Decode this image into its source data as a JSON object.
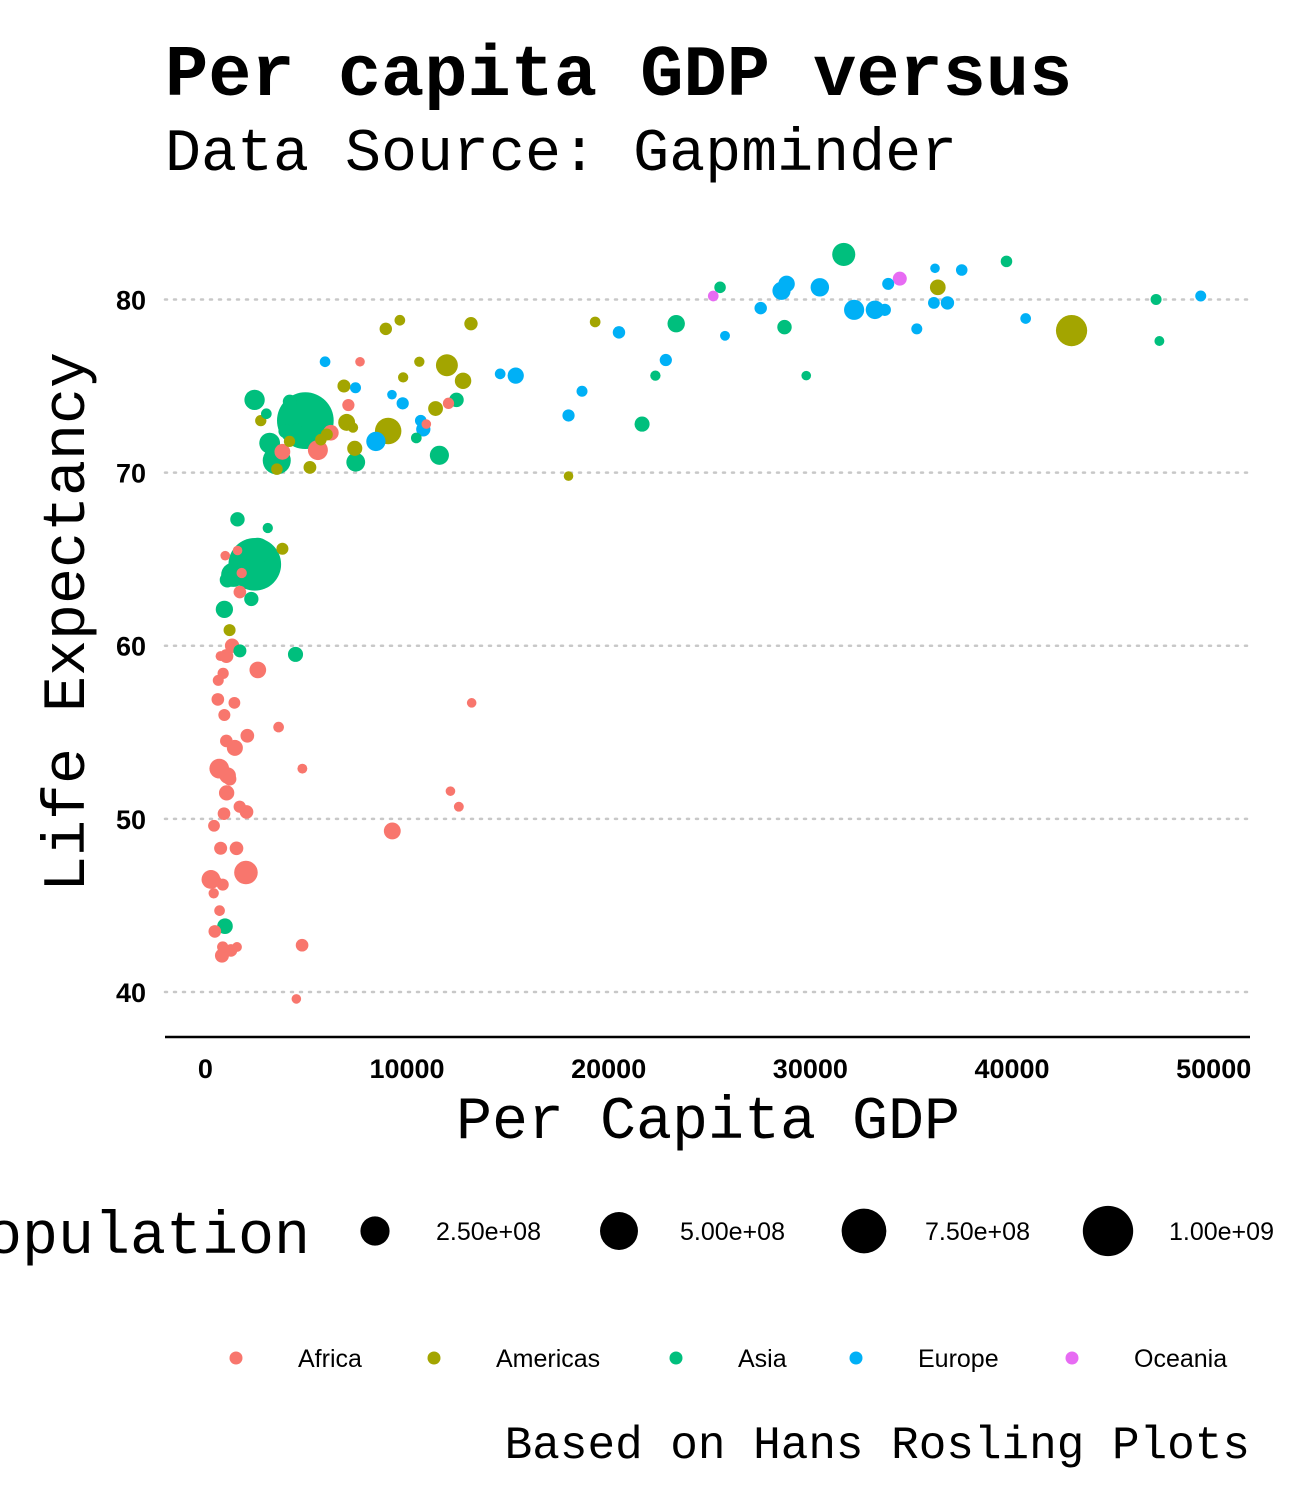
{
  "chart_data": {
    "type": "scatter",
    "title": "Per capita GDP versus",
    "subtitle": "Data Source: Gapminder",
    "xlabel": "Per Capita GDP",
    "ylabel": "Life Expectancy",
    "caption": "Based on Hans Rosling Plots",
    "xlim": [
      -2000,
      51800
    ],
    "ylim": [
      37.4,
      84.3
    ],
    "x_ticks": [
      0,
      10000,
      20000,
      30000,
      40000,
      50000
    ],
    "y_ticks": [
      40,
      50,
      60,
      70,
      80
    ],
    "grid": "horizontal-dotted",
    "size_legend": {
      "title": "Population",
      "entries": [
        {
          "label": "2.50e+08",
          "value": 250000000
        },
        {
          "label": "5.00e+08",
          "value": 500000000
        },
        {
          "label": "7.50e+08",
          "value": 750000000
        },
        {
          "label": "1.00e+09",
          "value": 1000000000
        }
      ]
    },
    "color_legend": [
      {
        "name": "Africa",
        "color": "#F8766D"
      },
      {
        "name": "Americas",
        "color": "#A3A500"
      },
      {
        "name": "Asia",
        "color": "#00BF7D"
      },
      {
        "name": "Europe",
        "color": "#00B0F6"
      },
      {
        "name": "Oceania",
        "color": "#E76BF3"
      }
    ],
    "series": [
      {
        "name": "Africa",
        "color": "#F8766D",
        "points": [
          [
            6223,
            72.3,
            33
          ],
          [
            4797,
            42.7,
            12
          ],
          [
            1441,
            56.7,
            8
          ],
          [
            12570,
            50.7,
            2
          ],
          [
            1217,
            52.3,
            14
          ],
          [
            430,
            49.6,
            8
          ],
          [
            2042,
            50.4,
            18
          ],
          [
            706,
            44.7,
            4
          ],
          [
            1704,
            50.7,
            10
          ],
          [
            986,
            65.2,
            1
          ],
          [
            278,
            46.5,
            65
          ],
          [
            3633,
            55.3,
            4
          ],
          [
            1545,
            48.3,
            18
          ],
          [
            2082,
            54.8,
            18
          ],
          [
            5581,
            71.3,
            80
          ],
          [
            12154,
            51.6,
            1
          ],
          [
            641,
            58,
            5
          ],
          [
            690,
            52.9,
            76
          ],
          [
            13206,
            56.7,
            1
          ],
          [
            753,
            59.4,
            2
          ],
          [
            1327,
            60,
            23
          ],
          [
            943,
            56,
            9
          ],
          [
            580,
            46.4,
            1
          ],
          [
            1464,
            54.1,
            36
          ],
          [
            1569,
            42.6,
            2
          ],
          [
            415,
            45.7,
            3
          ],
          [
            12057,
            74,
            6
          ],
          [
            1045,
            59.4,
            19
          ],
          [
            759,
            48.3,
            14
          ],
          [
            1042,
            54.5,
            12
          ],
          [
            1803,
            64.2,
            3
          ],
          [
            10957,
            72.8,
            1
          ],
          [
            3820,
            71.2,
            34
          ],
          [
            824,
            42.1,
            20
          ],
          [
            4811,
            52.9,
            2
          ],
          [
            620,
            56.9,
            12
          ],
          [
            2014,
            46.9,
            135
          ],
          [
            7670,
            76.4,
            1
          ],
          [
            863,
            46.2,
            9
          ],
          [
            1598,
            65.5,
            0.2
          ],
          [
            1712,
            63.1,
            12
          ],
          [
            862,
            42.6,
            6
          ],
          [
            926,
            50.3,
            12
          ],
          [
            9270,
            49.3,
            44
          ],
          [
            2602,
            58.6,
            42
          ],
          [
            4513,
            39.6,
            1
          ],
          [
            1107,
            52.5,
            40
          ],
          [
            883,
            58.4,
            6
          ],
          [
            7093,
            73.9,
            10
          ],
          [
            1056,
            51.5,
            30
          ],
          [
            1271,
            42.4,
            12
          ],
          [
            470,
            43.5,
            12
          ]
        ]
      },
      {
        "name": "Americas",
        "color": "#A3A500",
        "points": [
          [
            12779,
            75.3,
            40
          ],
          [
            3822,
            65.6,
            9
          ],
          [
            9066,
            72.4,
            190
          ],
          [
            36319,
            80.7,
            33
          ],
          [
            13172,
            78.6,
            16
          ],
          [
            7007,
            72.9,
            44
          ],
          [
            9645,
            78.8,
            4
          ],
          [
            8948,
            78.3,
            11
          ],
          [
            6025,
            72.2,
            9
          ],
          [
            6873,
            75,
            14
          ],
          [
            5728,
            71.9,
            7
          ],
          [
            5186,
            70.3,
            13
          ],
          [
            1202,
            60.9,
            9
          ],
          [
            3548,
            70.2,
            7
          ],
          [
            7321,
            72.6,
            3
          ],
          [
            11978,
            76.2,
            108
          ],
          [
            2749,
            73,
            6
          ],
          [
            9809,
            75.5,
            3
          ],
          [
            4173,
            71.8,
            6
          ],
          [
            7409,
            71.4,
            28
          ],
          [
            19329,
            78.7,
            4
          ],
          [
            18009,
            69.8,
            1
          ],
          [
            42952,
            78.2,
            301
          ],
          [
            10611,
            76.4,
            3
          ],
          [
            11416,
            73.7,
            26
          ]
        ]
      },
      {
        "name": "Asia",
        "color": "#00BF7D",
        "points": [
          [
            975,
            43.8,
            32
          ],
          [
            29796,
            75.6,
            1
          ],
          [
            1391,
            64.1,
            150
          ],
          [
            1714,
            59.7,
            14
          ],
          [
            4959,
            73,
            1319
          ],
          [
            39725,
            82.2,
            7
          ],
          [
            2452,
            64.7,
            1110
          ],
          [
            3541,
            70.7,
            224
          ],
          [
            11606,
            71,
            69
          ],
          [
            4471,
            59.5,
            28
          ],
          [
            25523,
            80.7,
            7
          ],
          [
            31656,
            82.6,
            127
          ],
          [
            4519,
            72.5,
            6
          ],
          [
            1593,
            67.3,
            23
          ],
          [
            23348,
            78.6,
            49
          ],
          [
            47307,
            77.6,
            2
          ],
          [
            10461,
            72,
            4
          ],
          [
            12452,
            74.2,
            24
          ],
          [
            3096,
            66.8,
            3
          ],
          [
            944,
            62.1,
            48
          ],
          [
            1091,
            63.8,
            29
          ],
          [
            22316,
            75.6,
            3
          ],
          [
            2606,
            65.5,
            169
          ],
          [
            3190,
            71.7,
            91
          ],
          [
            21655,
            72.8,
            28
          ],
          [
            47143,
            80,
            5
          ],
          [
            3970,
            72.4,
            20
          ],
          [
            4185,
            74.1,
            19
          ],
          [
            28718,
            78.4,
            23
          ],
          [
            7458,
            70.6,
            65
          ],
          [
            2442,
            74.2,
            85
          ],
          [
            3025,
            73.4,
            4
          ],
          [
            2281,
            62.7,
            22
          ]
        ]
      },
      {
        "name": "Europe",
        "color": "#00B0F6",
        "points": [
          [
            5937,
            76.4,
            4
          ],
          [
            36126,
            79.8,
            8
          ],
          [
            33693,
            79.4,
            10
          ],
          [
            7446,
            74.9,
            5
          ],
          [
            10681,
            73,
            7
          ],
          [
            14619,
            75.7,
            4
          ],
          [
            22833,
            76.5,
            10
          ],
          [
            35278,
            78.3,
            5
          ],
          [
            33207,
            79.3,
            5
          ],
          [
            30470,
            80.7,
            61
          ],
          [
            32170,
            79.4,
            82
          ],
          [
            27538,
            79.5,
            11
          ],
          [
            18009,
            73.3,
            10
          ],
          [
            36181,
            81.8,
            0.3
          ],
          [
            40676,
            78.9,
            4
          ],
          [
            28570,
            80.5,
            58
          ],
          [
            9254,
            74.5,
            1
          ],
          [
            36798,
            79.8,
            16
          ],
          [
            49357,
            80.2,
            5
          ],
          [
            15390,
            75.6,
            38
          ],
          [
            20510,
            78.1,
            11
          ],
          [
            10808,
            72.5,
            22
          ],
          [
            9786,
            74,
            10
          ],
          [
            18678,
            74.7,
            5
          ],
          [
            25768,
            77.9,
            2
          ],
          [
            28821,
            80.9,
            40
          ],
          [
            33860,
            80.9,
            9
          ],
          [
            37506,
            81.7,
            7
          ],
          [
            8458,
            71.8,
            71
          ],
          [
            33203,
            79.4,
            61
          ]
        ]
      },
      {
        "name": "Oceania",
        "color": "#E76BF3",
        "points": [
          [
            34435,
            81.2,
            20
          ],
          [
            25185,
            80.2,
            4
          ]
        ]
      }
    ]
  }
}
